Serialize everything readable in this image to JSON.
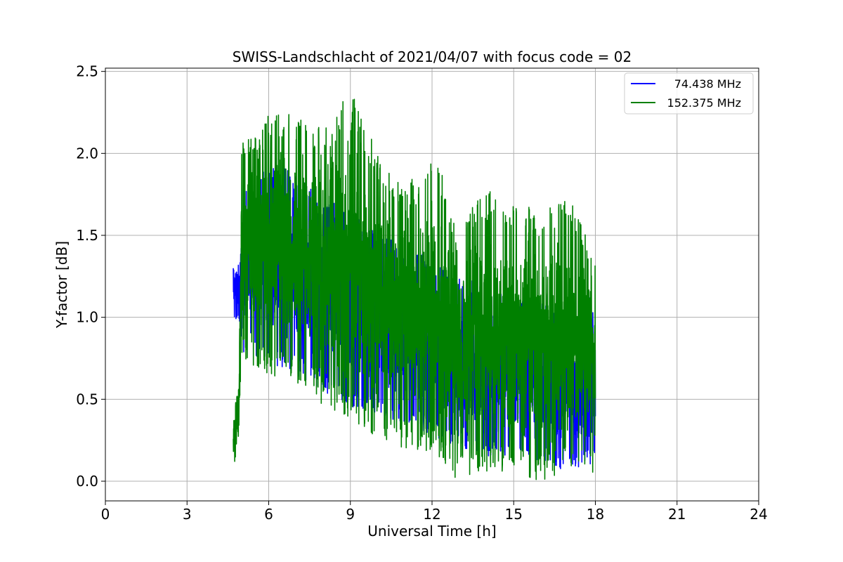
{
  "chart_data": {
    "type": "line",
    "title": "SWISS-Landschlacht of 2021/04/07 with focus code = 02",
    "xlabel": "Universal Time [h]",
    "ylabel": "Y-factor [dB]",
    "xlim": [
      0,
      24
    ],
    "ylim": [
      -0.12,
      2.52
    ],
    "xticks": [
      0,
      3,
      6,
      9,
      12,
      15,
      18,
      21,
      24
    ],
    "yticks": [
      0.0,
      0.5,
      1.0,
      1.5,
      2.0,
      2.5
    ],
    "xtick_labels": [
      "0",
      "3",
      "6",
      "9",
      "12",
      "15",
      "18",
      "21",
      "24"
    ],
    "ytick_labels": [
      "0.0",
      "0.5",
      "1.0",
      "1.5",
      "2.0",
      "2.5"
    ],
    "grid": true,
    "legend_position": "top-right",
    "series": [
      {
        "name": "74.438 MHz",
        "color": "#0000ff",
        "x_range": [
          4.7,
          18.0
        ],
        "envelope": {
          "x": [
            4.7,
            4.9,
            5.0,
            6.0,
            7.0,
            8.0,
            9.0,
            10.0,
            11.0,
            12.0,
            13.0,
            14.0,
            15.0,
            16.0,
            17.0,
            18.0
          ],
          "low": [
            0.97,
            0.98,
            0.78,
            0.72,
            0.65,
            0.55,
            0.45,
            0.4,
            0.33,
            0.28,
            0.2,
            0.15,
            0.15,
            0.12,
            0.05,
            0.1
          ],
          "high": [
            1.3,
            1.48,
            1.8,
            1.95,
            1.9,
            1.75,
            1.65,
            1.55,
            1.45,
            1.35,
            1.25,
            1.2,
            1.15,
            1.1,
            1.05,
            1.15
          ]
        }
      },
      {
        "name": "152.375 MHz",
        "color": "#008000",
        "x_range": [
          4.7,
          18.0
        ],
        "envelope": {
          "x": [
            4.7,
            4.9,
            5.0,
            6.0,
            7.0,
            8.0,
            9.0,
            10.0,
            11.0,
            12.0,
            13.0,
            14.0,
            15.0,
            16.0,
            17.0,
            18.0
          ],
          "low": [
            0.05,
            0.2,
            0.75,
            0.65,
            0.6,
            0.45,
            0.37,
            0.25,
            0.2,
            0.15,
            0.0,
            0.05,
            0.05,
            0.0,
            0.05,
            0.05
          ],
          "high": [
            0.48,
            0.57,
            2.08,
            2.26,
            2.25,
            2.15,
            2.39,
            2.0,
            1.8,
            2.0,
            1.65,
            1.78,
            1.7,
            1.65,
            1.73,
            1.45
          ]
        }
      }
    ]
  }
}
